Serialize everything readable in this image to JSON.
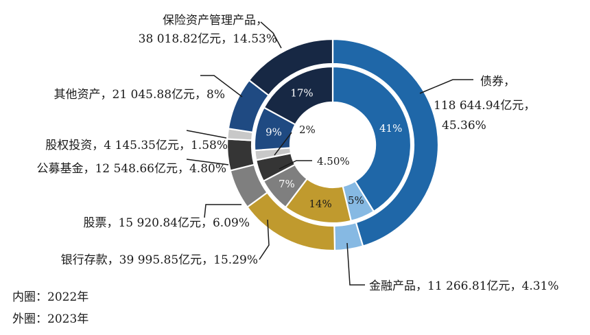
{
  "chart_data": {
    "type": "pie",
    "style": "double-ring-donut",
    "legend": {
      "inner": "内圈：2022年",
      "outer": "外圈：2023年"
    },
    "outer_ring": {
      "series": "2023",
      "slices": [
        {
          "name": "债券",
          "amount": "118 644.94亿元",
          "share": "45.36%",
          "value": 45.36,
          "color": "#1f67a8"
        },
        {
          "name": "金融产品",
          "amount": "11 266.81亿元",
          "share": "4.31%",
          "value": 4.31,
          "color": "#86b9e3"
        },
        {
          "name": "银行存款",
          "amount": "39 995.85亿元",
          "share": "15.29%",
          "value": 15.29,
          "color": "#c09a2e"
        },
        {
          "name": "股票",
          "amount": "15 920.84亿元",
          "share": "6.09%",
          "value": 6.09,
          "color": "#7f7f7f"
        },
        {
          "name": "公募基金",
          "amount": "12 548.66亿元",
          "share": "4.80%",
          "value": 4.8,
          "color": "#353535"
        },
        {
          "name": "股权投资",
          "amount": "4 145.35亿元",
          "share": "1.58%",
          "value": 1.58,
          "color": "#c8c8c8"
        },
        {
          "name": "其他资产",
          "amount": "21 045.88亿元",
          "share": "8%",
          "value": 8.0,
          "color": "#1f4a82"
        },
        {
          "name": "保险资产管理产品",
          "amount": "38 018.82亿元",
          "share": "14.53%",
          "value": 14.53,
          "color": "#172844"
        }
      ]
    },
    "inner_ring": {
      "series": "2022",
      "slices": [
        {
          "name": "债券",
          "label": "41%",
          "value": 41,
          "color": "#1f67a8"
        },
        {
          "name": "金融产品",
          "label": "5%",
          "value": 5,
          "color": "#86b9e3"
        },
        {
          "name": "银行存款",
          "label": "14%",
          "value": 14,
          "color": "#c09a2e"
        },
        {
          "name": "股票",
          "label": "7%",
          "value": 7,
          "color": "#7f7f7f"
        },
        {
          "name": "公募基金",
          "label": "4.50%",
          "value": 4.5,
          "color": "#353535"
        },
        {
          "name": "股权投资",
          "label": "2%",
          "value": 2,
          "color": "#c8c8c8"
        },
        {
          "name": "其他资产",
          "label": "9%",
          "value": 9,
          "color": "#1f4a82"
        },
        {
          "name": "保险资产管理产品",
          "label": "17%",
          "value": 17,
          "color": "#172844"
        }
      ]
    }
  }
}
